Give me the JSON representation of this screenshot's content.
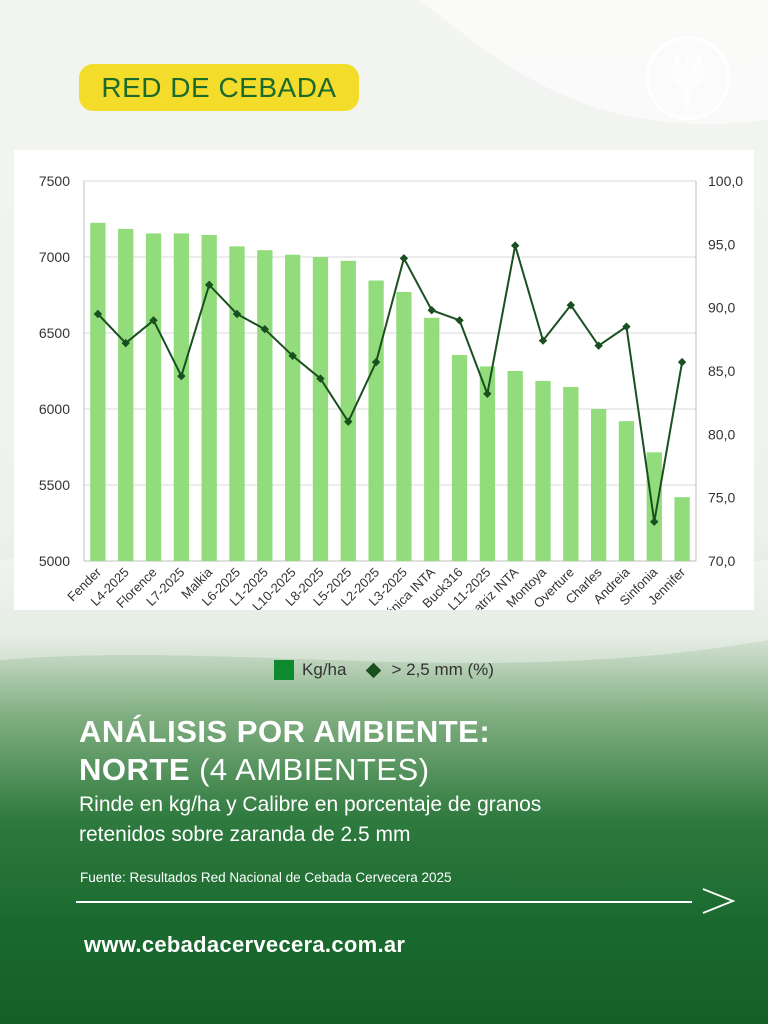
{
  "badge": {
    "label": "RED DE CEBADA"
  },
  "logo": {
    "icon": "wheat-icon"
  },
  "heading": {
    "line1": "ANÁLISIS POR AMBIENTE:",
    "line2_bold": "NORTE",
    "line2_light": " (4 AMBIENTES)"
  },
  "subtitle": {
    "line1": "Rinde en kg/ha y Calibre en porcentaje de granos",
    "line2": "retenidos sobre zaranda de 2.5 mm"
  },
  "source": "Fuente: Resultados Red Nacional de Cebada Cervecera 2025",
  "url": "www.cebadacervecera.com.ar",
  "colors": {
    "bar": "#92dc7c",
    "line": "#1a4f1f",
    "badge": "#f4dc2b",
    "badge_text": "#1d6b2c",
    "legend_bar": "#0e8a2e"
  },
  "chart_data": {
    "type": "bar",
    "categories": [
      "Fender",
      "L4-2025",
      "Florence",
      "L7-2025",
      "Malkia",
      "L6-2025",
      "L1-2025",
      "L10-2025",
      "L8-2025",
      "L5-2025",
      "L2-2025",
      "L3-2025",
      "Verónica INTA",
      "Buck316",
      "L11-2025",
      "Beatriz INTA",
      "Montoya",
      "Overture",
      "Charles",
      "Andreia",
      "Sinfonia",
      "Jennifer"
    ],
    "series": [
      {
        "name": "Kg/ha",
        "type": "bar",
        "axis": "left",
        "values": [
          7225,
          7185,
          7155,
          7155,
          7145,
          7070,
          7045,
          7015,
          7000,
          6975,
          6845,
          6770,
          6600,
          6355,
          6280,
          6250,
          6185,
          6145,
          6000,
          5920,
          5715,
          5420
        ]
      },
      {
        "name": "> 2,5 mm (%)",
        "type": "line",
        "axis": "right",
        "values": [
          89.5,
          87.2,
          89.0,
          84.6,
          91.8,
          89.5,
          88.3,
          86.2,
          84.4,
          81.0,
          85.7,
          93.9,
          89.8,
          89.0,
          83.2,
          94.9,
          87.4,
          90.2,
          87.0,
          88.5,
          73.1,
          85.7
        ]
      }
    ],
    "y_left": {
      "min": 5000,
      "max": 7500,
      "ticks": [
        "5000",
        "5500",
        "6000",
        "6500",
        "7000",
        "7500"
      ]
    },
    "y_right": {
      "min": 70,
      "max": 100,
      "ticks": [
        "70,0",
        "75,0",
        "80,0",
        "85,0",
        "90,0",
        "95,0",
        "100,0"
      ]
    },
    "grid": "horizontal",
    "legend": "bottom"
  }
}
